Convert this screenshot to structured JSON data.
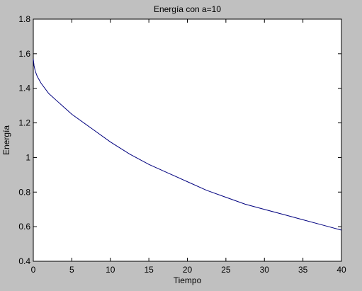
{
  "chart_data": {
    "type": "line",
    "title": "Energía con a=10",
    "xlabel": "Tiempo",
    "ylabel": "Energía",
    "xlim": [
      0,
      40
    ],
    "ylim": [
      0.4,
      1.8
    ],
    "xticks": [
      0,
      5,
      10,
      15,
      20,
      25,
      30,
      35,
      40
    ],
    "yticks": [
      0.4,
      0.6,
      0.8,
      1,
      1.2,
      1.4,
      1.6,
      1.8
    ],
    "xtick_labels": [
      "0",
      "5",
      "10",
      "15",
      "20",
      "25",
      "30",
      "35",
      "40"
    ],
    "ytick_labels": [
      "0.4",
      "0.6",
      "0.8",
      "1",
      "1.2",
      "1.4",
      "1.6",
      "1.8"
    ],
    "grid": false,
    "series": [
      {
        "color": "#00007f",
        "x": [
          0,
          0.1,
          0.25,
          0.5,
          1,
          2,
          3,
          4,
          5,
          7.5,
          10,
          12.5,
          15,
          17.5,
          20,
          22.5,
          25,
          27.5,
          30,
          32.5,
          35,
          37.5,
          40
        ],
        "y": [
          1.57,
          1.53,
          1.5,
          1.47,
          1.43,
          1.37,
          1.33,
          1.29,
          1.25,
          1.17,
          1.09,
          1.02,
          0.96,
          0.91,
          0.86,
          0.81,
          0.77,
          0.73,
          0.7,
          0.67,
          0.64,
          0.61,
          0.58
        ]
      }
    ]
  }
}
